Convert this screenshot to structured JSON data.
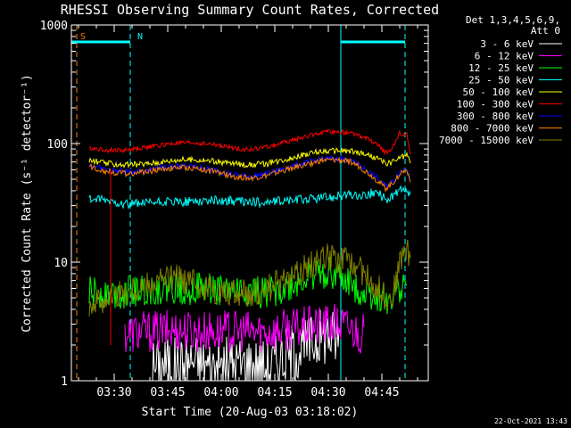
{
  "chart_data": {
    "type": "line",
    "title": "RHESSI Observing Summary Count Rates, Corrected",
    "xlabel": "Start Time (20-Aug-03 03:18:02)",
    "ylabel": "Corrected Count Rate (s⁻¹ detector⁻¹)",
    "x_unit": "minutes since 03:18:02",
    "xlim": [
      0,
      100
    ],
    "ylim": [
      1,
      1000
    ],
    "yscale": "log",
    "x_ticks": [
      {
        "value": 12,
        "label": "03:30"
      },
      {
        "value": 27,
        "label": "03:45"
      },
      {
        "value": 42,
        "label": "04:00"
      },
      {
        "value": 57,
        "label": "04:15"
      },
      {
        "value": 72,
        "label": "04:30"
      },
      {
        "value": 87,
        "label": "04:45"
      }
    ],
    "y_ticks": [
      {
        "value": 1,
        "label": "1"
      },
      {
        "value": 10,
        "label": "10"
      },
      {
        "value": 100,
        "label": "100"
      },
      {
        "value": 1000,
        "label": "1000"
      }
    ],
    "legend_title": [
      "Det 1,3,4,5,6,9,",
      "Att 0"
    ],
    "series": [
      {
        "name": "3 - 6 keV",
        "color": "#ffffff",
        "x": [
          19,
          22,
          22.5,
          25,
          25.5,
          28,
          30,
          34,
          40,
          45,
          50,
          55,
          58,
          60,
          63,
          66,
          69,
          72,
          75
        ],
        "values": [
          null,
          null,
          1.3,
          null,
          1.4,
          1.4,
          1.3,
          1.5,
          1.3,
          1.4,
          1.4,
          1.3,
          1.5,
          1.6,
          1.8,
          2.0,
          2.3,
          2.5,
          2.2
        ]
      },
      {
        "name": "6 - 12 keV",
        "color": "#ff00ff",
        "x": [
          15,
          20,
          25,
          30,
          35,
          40,
          45,
          50,
          55,
          60,
          65,
          70,
          72,
          75,
          78,
          80,
          82
        ],
        "values": [
          2.5,
          2.6,
          2.6,
          2.7,
          2.6,
          2.6,
          2.6,
          2.6,
          2.6,
          2.7,
          2.8,
          2.9,
          3.0,
          3.0,
          2.8,
          2.6,
          2.5
        ]
      },
      {
        "name": "12 - 25 keV",
        "color": "#00ff00",
        "x": [
          5,
          10,
          15,
          20,
          25,
          30,
          35,
          40,
          45,
          50,
          55,
          60,
          62,
          64,
          66,
          68,
          70,
          72,
          74,
          76,
          78,
          80,
          82,
          84,
          86,
          88,
          90,
          92,
          94
        ],
        "values": [
          5.5,
          5.5,
          5.6,
          5.8,
          5.9,
          6.0,
          6.0,
          5.9,
          5.8,
          5.6,
          5.6,
          6.0,
          6.3,
          6.8,
          7.3,
          7.8,
          8.2,
          8.3,
          7.8,
          7.0,
          6.5,
          6.0,
          5.6,
          5.3,
          5.0,
          5.0,
          5.0,
          6.0,
          6.5
        ]
      },
      {
        "name": "25 - 50 keV",
        "color": "#00ffff",
        "x": [
          5,
          10,
          15,
          20,
          25,
          30,
          35,
          40,
          45,
          50,
          55,
          60,
          65,
          70,
          75,
          78,
          80,
          82,
          84,
          86,
          88,
          90,
          92,
          94,
          95
        ],
        "values": [
          34,
          33,
          31,
          31,
          32,
          32,
          33,
          33,
          33,
          32,
          32,
          33,
          34,
          35,
          36,
          37,
          36,
          36,
          38,
          38,
          34,
          36,
          40,
          38,
          36
        ]
      },
      {
        "name": "50 - 100 keV",
        "color": "#ffff00",
        "x": [
          5,
          10,
          15,
          20,
          25,
          30,
          35,
          40,
          45,
          50,
          55,
          60,
          65,
          70,
          75,
          78,
          80,
          82,
          84,
          86,
          88,
          90,
          92,
          94,
          95
        ],
        "values": [
          72,
          68,
          66,
          67,
          70,
          73,
          73,
          71,
          68,
          66,
          68,
          74,
          80,
          86,
          87,
          86,
          84,
          82,
          78,
          74,
          68,
          70,
          76,
          80,
          68
        ]
      },
      {
        "name": "100 - 300 keV",
        "color": "#ff0000",
        "x": [
          5,
          10,
          15,
          20,
          25,
          30,
          35,
          40,
          45,
          50,
          55,
          60,
          65,
          70,
          75,
          78,
          80,
          82,
          84,
          86,
          88,
          90,
          92,
          94,
          95
        ],
        "values": [
          92,
          88,
          88,
          92,
          97,
          101,
          101,
          98,
          92,
          89,
          94,
          103,
          113,
          124,
          126,
          122,
          119,
          112,
          105,
          96,
          84,
          92,
          122,
          118,
          82
        ]
      },
      {
        "name": "300 - 800 keV",
        "color": "#0000ff",
        "x": [
          5,
          10,
          15,
          20,
          25,
          30,
          35,
          40,
          45,
          50,
          55,
          60,
          65,
          70,
          75,
          78,
          80,
          82,
          84,
          86,
          88,
          90,
          92,
          94,
          95
        ],
        "values": [
          66,
          60,
          58,
          59,
          63,
          65,
          64,
          60,
          55,
          53,
          56,
          62,
          68,
          74,
          75,
          72,
          68,
          62,
          56,
          50,
          44,
          48,
          58,
          62,
          52
        ]
      },
      {
        "name": "800 - 7000 keV",
        "color": "#ff8000",
        "x": [
          5,
          10,
          15,
          20,
          25,
          30,
          35,
          40,
          45,
          50,
          55,
          60,
          65,
          70,
          75,
          78,
          80,
          82,
          84,
          86,
          88,
          90,
          92,
          94,
          95
        ],
        "values": [
          64,
          58,
          56,
          57,
          61,
          63,
          62,
          58,
          53,
          51,
          54,
          60,
          66,
          72,
          73,
          70,
          66,
          60,
          54,
          48,
          42,
          46,
          56,
          60,
          50
        ]
      },
      {
        "name": "7000 - 15000 keV",
        "color": "#808000",
        "x": [
          5,
          10,
          15,
          20,
          25,
          30,
          35,
          40,
          45,
          50,
          55,
          60,
          63,
          66,
          69,
          72,
          75,
          78,
          80,
          82,
          84,
          86,
          88,
          90,
          92,
          94,
          95
        ],
        "values": [
          4.5,
          5.0,
          5.5,
          6.2,
          7.0,
          7.3,
          6.5,
          5.8,
          5.5,
          5.5,
          6.0,
          7.0,
          8.0,
          9.0,
          10.5,
          11.0,
          10.5,
          10.0,
          9.0,
          8.0,
          7.0,
          6.0,
          5.2,
          5.0,
          10.0,
          14.0,
          9.0
        ]
      }
    ],
    "annotations": [
      {
        "label": "S",
        "color": "#ff8000",
        "x": 0.5
      },
      {
        "label": "N",
        "color": "#00ffff",
        "x": 16.5
      }
    ],
    "orbit_markers": {
      "color": "#00ffff",
      "day_bars": [
        [
          0,
          16.5
        ],
        [
          75.5,
          93.5
        ]
      ],
      "lines": [
        0,
        16.5,
        75.5,
        93.5
      ],
      "dashed": [
        16.5,
        93.5
      ],
      "orange_dashed": [
        1.5
      ]
    }
  },
  "footer": {
    "timestamp": "22-Oct-2021 13:43"
  }
}
